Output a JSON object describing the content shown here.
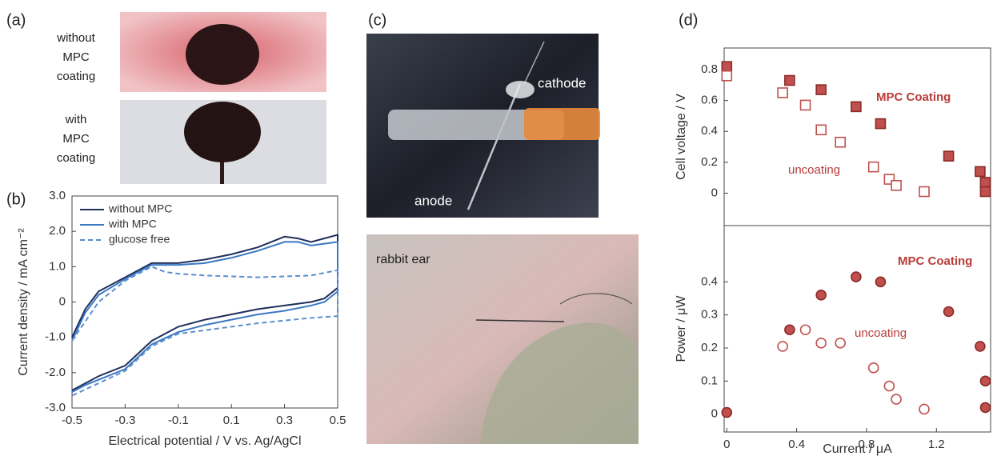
{
  "panel_labels": [
    "(a)",
    "(b)",
    "(c)",
    "(d)"
  ],
  "photo_a": {
    "top_caption": [
      "without",
      "MPC",
      "coating"
    ],
    "bottom_caption": [
      "with",
      "MPC",
      "coating"
    ]
  },
  "photo_c": {
    "cathode": "cathode",
    "anode": "anode",
    "rabbit_ear": "rabbit ear"
  },
  "chart_data": [
    {
      "type": "line",
      "xlabel": "Electrical potential / V vs. Ag/AgCl",
      "ylabel": "Current density / mA cm⁻²",
      "xlim": [
        -0.5,
        0.5
      ],
      "ylim": [
        -3,
        3
      ],
      "xticks": [
        -0.5,
        -0.3,
        -0.1,
        0.1,
        0.3,
        0.5
      ],
      "yticks": [
        {
          "value": 3,
          "label": "3.0"
        },
        {
          "value": 2,
          "label": "2.0"
        },
        {
          "value": 1,
          "label": "1.0"
        },
        0,
        {
          "value": -1,
          "label": "-1.0"
        },
        {
          "value": -2,
          "label": "-2.0"
        },
        {
          "value": -3,
          "label": "-3.0"
        }
      ],
      "legend": "upper left",
      "series": [
        {
          "name": "without MPC",
          "color": "#1f2f5c",
          "dashed": false,
          "x": [
            -0.5,
            -0.45,
            -0.4,
            -0.3,
            -0.2,
            -0.1,
            0,
            0.1,
            0.2,
            0.3,
            0.35,
            0.4,
            0.45,
            0.5,
            0.5,
            0.45,
            0.4,
            0.3,
            0.2,
            0.1,
            0,
            -0.1,
            -0.2,
            -0.3,
            -0.35,
            -0.4,
            -0.45,
            -0.5
          ],
          "values": [
            -1.0,
            -0.2,
            0.3,
            0.7,
            1.1,
            1.1,
            1.2,
            1.35,
            1.55,
            1.85,
            1.8,
            1.7,
            1.8,
            1.9,
            0.4,
            0.1,
            0.0,
            -0.1,
            -0.2,
            -0.35,
            -0.5,
            -0.7,
            -1.1,
            -1.8,
            -1.95,
            -2.1,
            -2.3,
            -2.5
          ]
        },
        {
          "name": "with MPC",
          "color": "#3a78c2",
          "dashed": false,
          "x": [
            -0.5,
            -0.45,
            -0.4,
            -0.3,
            -0.2,
            -0.1,
            0,
            0.1,
            0.2,
            0.3,
            0.35,
            0.4,
            0.45,
            0.5,
            0.5,
            0.45,
            0.4,
            0.3,
            0.2,
            0.1,
            0,
            -0.1,
            -0.2,
            -0.3,
            -0.4,
            -0.45,
            -0.5
          ],
          "values": [
            -1.1,
            -0.3,
            0.2,
            0.65,
            1.05,
            1.05,
            1.1,
            1.25,
            1.45,
            1.7,
            1.7,
            1.6,
            1.65,
            1.7,
            0.3,
            0.0,
            -0.1,
            -0.25,
            -0.35,
            -0.5,
            -0.65,
            -0.85,
            -1.2,
            -1.9,
            -2.2,
            -2.35,
            -2.55
          ]
        },
        {
          "name": "glucose free",
          "color": "#5b8fd0",
          "dashed": true,
          "x": [
            -0.5,
            -0.4,
            -0.3,
            -0.2,
            -0.15,
            -0.1,
            0,
            0.2,
            0.4,
            0.5,
            0.5,
            0.4,
            0.2,
            0,
            -0.1,
            -0.2,
            -0.3,
            -0.4,
            -0.5
          ],
          "values": [
            -1.1,
            0.0,
            0.6,
            1.0,
            0.85,
            0.8,
            0.75,
            0.7,
            0.75,
            0.9,
            -0.4,
            -0.45,
            -0.6,
            -0.8,
            -0.9,
            -1.25,
            -1.95,
            -2.3,
            -2.65
          ]
        }
      ]
    },
    {
      "type": "scatter",
      "marker": "square",
      "ylabel": "Cell voltage / V",
      "xlim": [
        -0.015,
        1.51
      ],
      "ylim": [
        -0.21,
        0.94
      ],
      "yticks": [
        0,
        0.2,
        0.4,
        0.6,
        0.8
      ],
      "annotations": [
        "MPC Coating",
        "uncoating"
      ],
      "series": [
        {
          "name": "MPC Coating",
          "color": "#c0504d",
          "filled": true,
          "x": [
            0,
            0.36,
            0.54,
            0.74,
            0.88,
            1.27,
            1.45,
            1.48,
            1.48
          ],
          "values": [
            0.82,
            0.73,
            0.67,
            0.56,
            0.45,
            0.24,
            0.14,
            0.07,
            0.01
          ]
        },
        {
          "name": "uncoating",
          "color": "#c0504d",
          "filled": false,
          "x": [
            0,
            0.32,
            0.45,
            0.54,
            0.65,
            0.84,
            0.93,
            0.97,
            1.13
          ],
          "values": [
            0.76,
            0.65,
            0.57,
            0.41,
            0.33,
            0.17,
            0.09,
            0.05,
            0.01
          ]
        }
      ]
    },
    {
      "type": "scatter",
      "marker": "circle",
      "ylabel": "Power / μW",
      "xlabel": "Current / μA",
      "xlim": [
        -0.015,
        1.51
      ],
      "ylim": [
        -0.054,
        0.57
      ],
      "xticks": [
        0,
        0.4,
        0.8,
        1.2
      ],
      "yticks": [
        0,
        0.1,
        0.2,
        0.3,
        0.4
      ],
      "annotations": [
        "MPC Coating",
        "uncoating"
      ],
      "series": [
        {
          "name": "MPC Coating",
          "color": "#c0504d",
          "filled": true,
          "x": [
            0,
            0.36,
            0.54,
            0.74,
            0.88,
            1.27,
            1.45,
            1.48,
            1.48
          ],
          "values": [
            0.005,
            0.255,
            0.36,
            0.415,
            0.4,
            0.31,
            0.205,
            0.1,
            0.02
          ]
        },
        {
          "name": "uncoating",
          "color": "#c0504d",
          "filled": false,
          "x": [
            0.32,
            0.45,
            0.54,
            0.65,
            0.84,
            0.93,
            0.97,
            1.13
          ],
          "values": [
            0.205,
            0.255,
            0.215,
            0.215,
            0.14,
            0.085,
            0.045,
            0.015
          ]
        }
      ]
    }
  ]
}
